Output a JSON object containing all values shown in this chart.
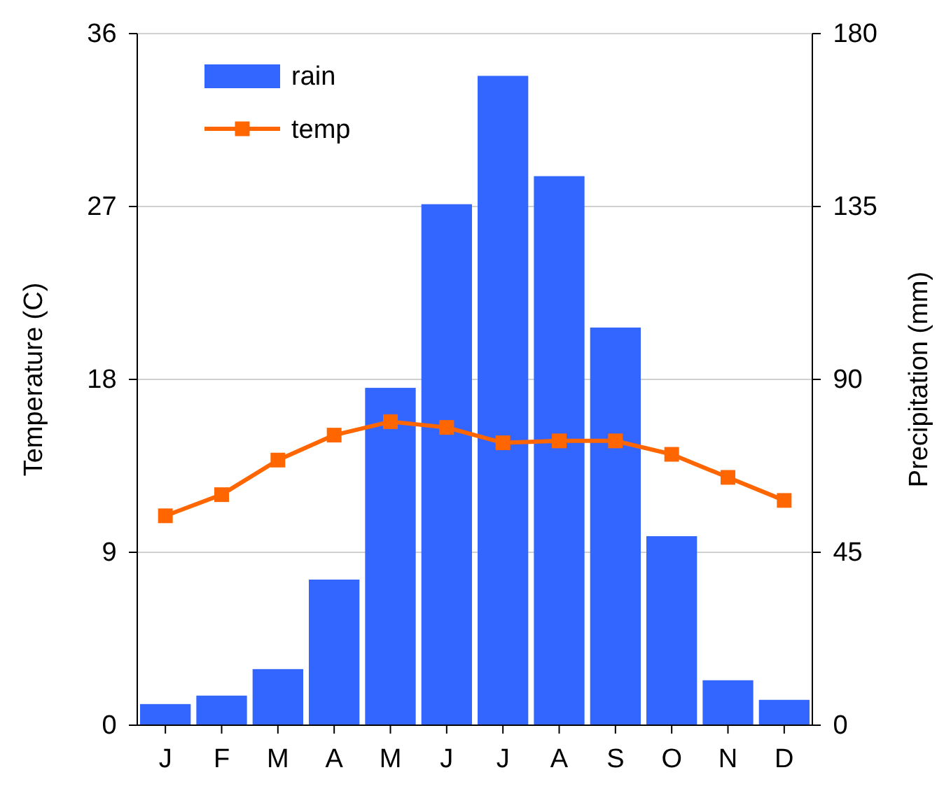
{
  "chart_data": {
    "type": "bar",
    "categories": [
      "J",
      "F",
      "M",
      "A",
      "M",
      "J",
      "J",
      "A",
      "S",
      "O",
      "N",
      "D"
    ],
    "ylabel": "Temperature (C)",
    "y2label": "Precipitation (mm)",
    "ylim": [
      0,
      36
    ],
    "yticks": [
      0,
      9,
      18,
      27,
      36
    ],
    "y2lim": [
      0,
      180
    ],
    "y2ticks": [
      0,
      45,
      90,
      135,
      180
    ],
    "grid": "y",
    "legend": "top left",
    "marker": "square",
    "line_style": "solid",
    "series": [
      {
        "name": "rain",
        "axis": "y2",
        "color": "#3366ff",
        "values": [
          5.5,
          7.7,
          14.6,
          37.9,
          87.8,
          135.6,
          169,
          142.9,
          103.5,
          49.2,
          11.7,
          6.6
        ]
      },
      {
        "name": "temp",
        "type": "line",
        "axis": "y",
        "color": "#ff6600",
        "values": [
          10.9,
          12.0,
          13.8,
          15.1,
          15.8,
          15.5,
          14.7,
          14.8,
          14.8,
          14.1,
          12.9,
          11.7
        ]
      }
    ]
  }
}
